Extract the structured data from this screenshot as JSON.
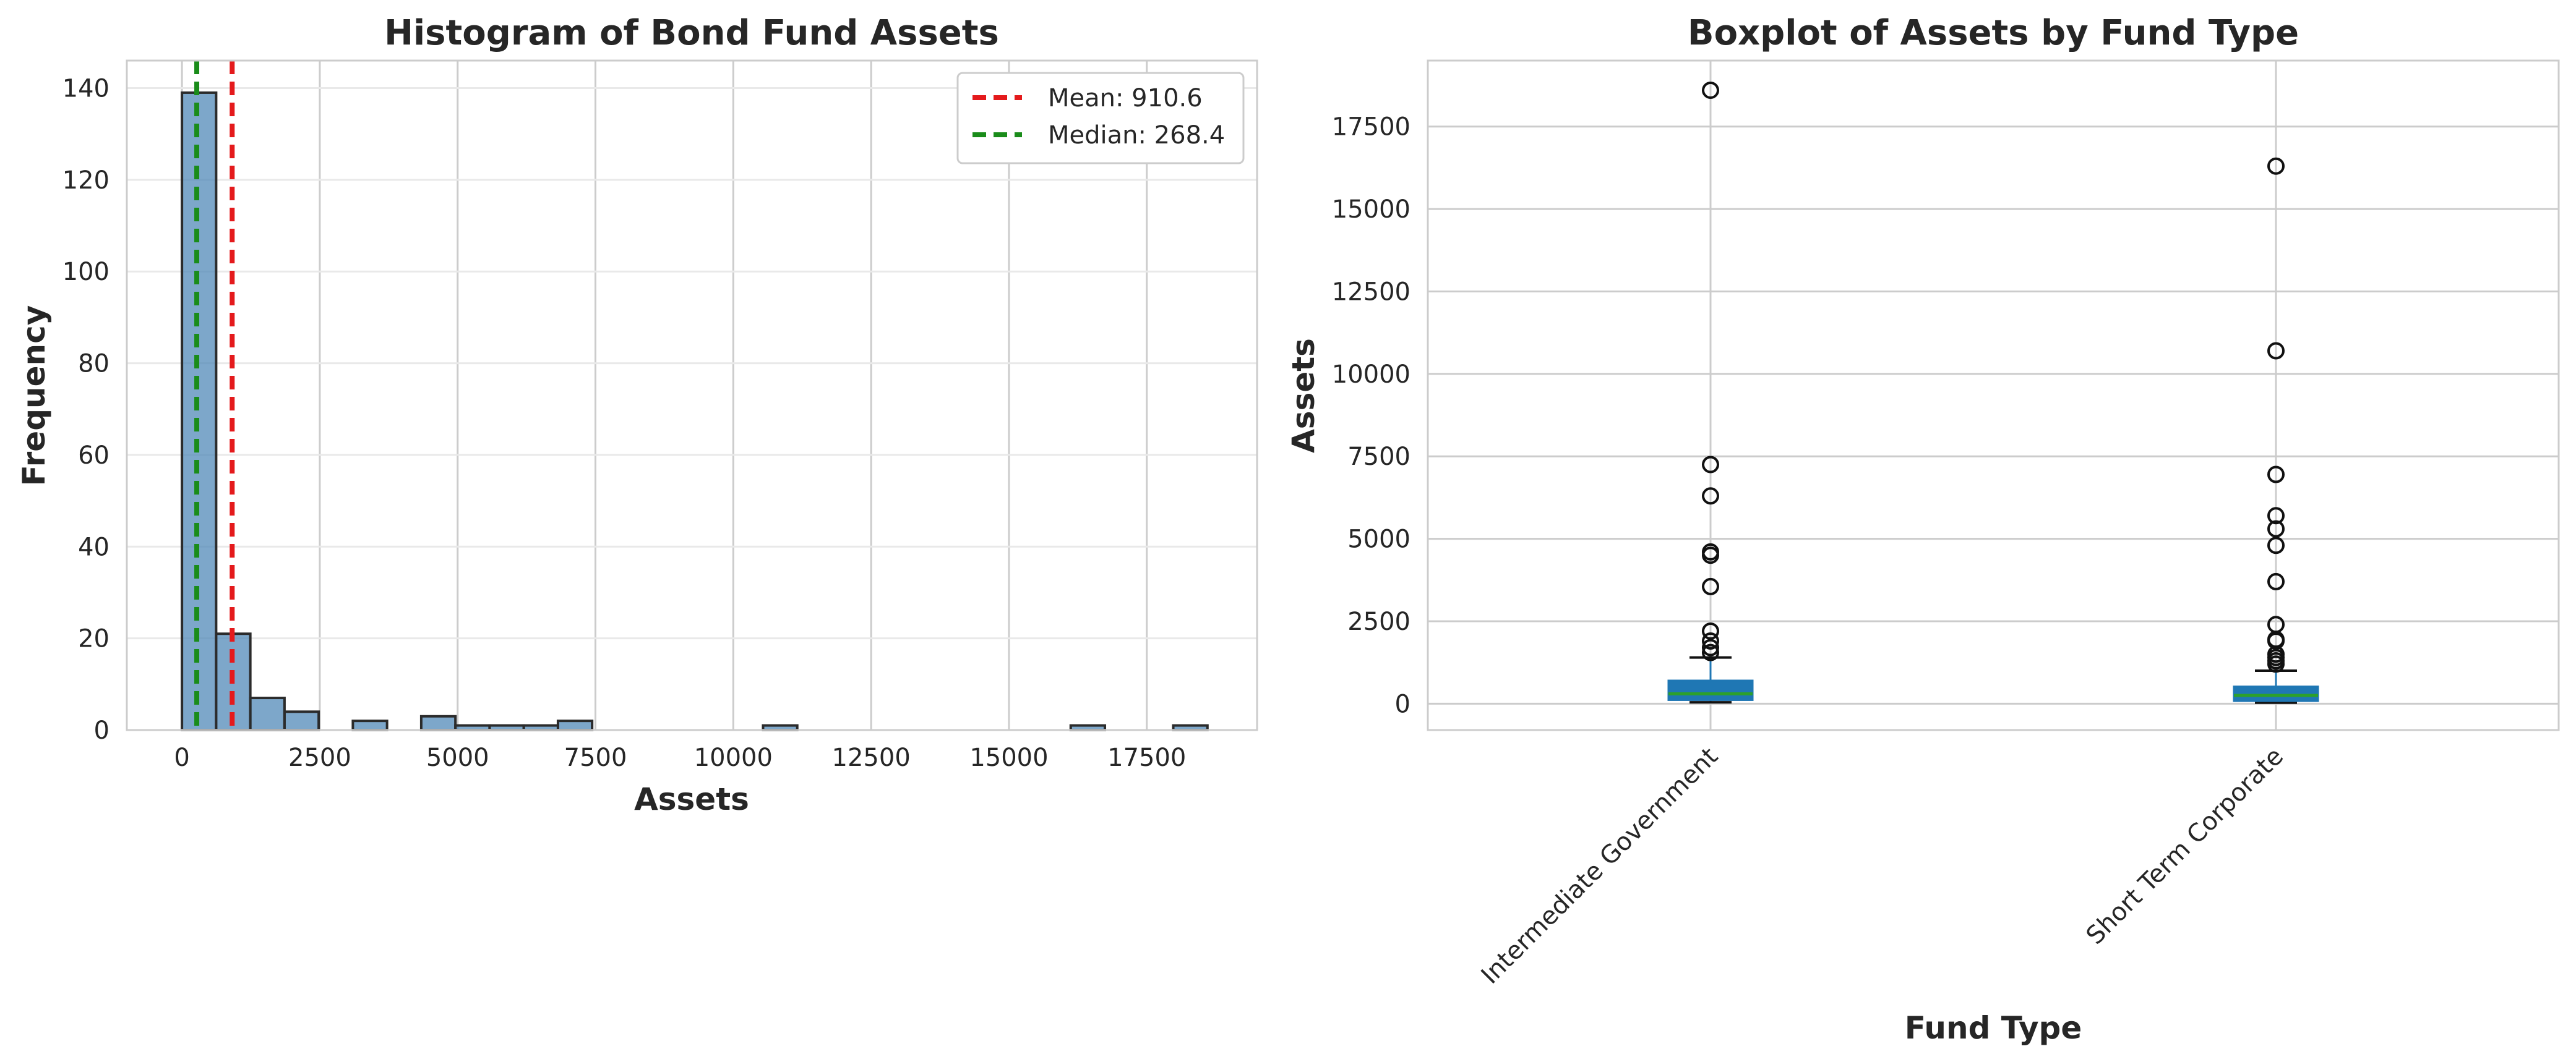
{
  "chart_data": [
    {
      "type": "bar",
      "subtype": "histogram",
      "title": "Histogram of Bond Fund Assets",
      "xlabel": "Assets",
      "ylabel": "Frequency",
      "xlim": [
        -1000,
        19500
      ],
      "ylim": [
        0,
        146
      ],
      "xticks": [
        0,
        2500,
        5000,
        7500,
        10000,
        12500,
        15000,
        17500
      ],
      "yticks": [
        0,
        20,
        40,
        60,
        80,
        100,
        120,
        140
      ],
      "bin_width": 620,
      "bin_edges_start": 0,
      "bin_counts": [
        139,
        21,
        7,
        4,
        0,
        2,
        0,
        3,
        1,
        1,
        1,
        2,
        0,
        0,
        0,
        0,
        0,
        1,
        0,
        0,
        0,
        0,
        0,
        0,
        0,
        0,
        1,
        0,
        0,
        1
      ],
      "bar_color": "#4682b4",
      "reference_lines": [
        {
          "label": "Mean: 910.6",
          "value": 910.6,
          "color": "#e41a1c",
          "style": "dashed"
        },
        {
          "label": "Median: 268.4",
          "value": 268.4,
          "color": "#1a8c1a",
          "style": "dashed"
        }
      ],
      "legend_position": "top-right",
      "grid": true
    },
    {
      "type": "boxplot",
      "title": "Boxplot of Assets by Fund Type",
      "xlabel": "Fund Type",
      "ylabel": "Assets",
      "ylim": [
        -800,
        19500
      ],
      "yticks": [
        0,
        2500,
        5000,
        7500,
        10000,
        12500,
        15000,
        17500
      ],
      "categories": [
        "Intermediate Government",
        "Short Term Corporate"
      ],
      "box_color": "#1f77b4",
      "median_color": "#2ca02c",
      "boxes": [
        {
          "name": "Intermediate Government",
          "whisker_low": 40,
          "q1": 110,
          "median": 300,
          "q3": 700,
          "whisker_high": 1400,
          "outliers": [
            18600,
            7250,
            6300,
            4600,
            4500,
            3550,
            2200,
            1900,
            1700,
            1550
          ]
        },
        {
          "name": "Short Term Corporate",
          "whisker_low": 30,
          "q1": 80,
          "median": 250,
          "q3": 520,
          "whisker_high": 1000,
          "outliers": [
            16300,
            10700,
            6950,
            5700,
            5300,
            4800,
            3700,
            2400,
            1950,
            1900,
            1500,
            1400,
            1300,
            1200
          ]
        }
      ],
      "grid": true
    }
  ]
}
